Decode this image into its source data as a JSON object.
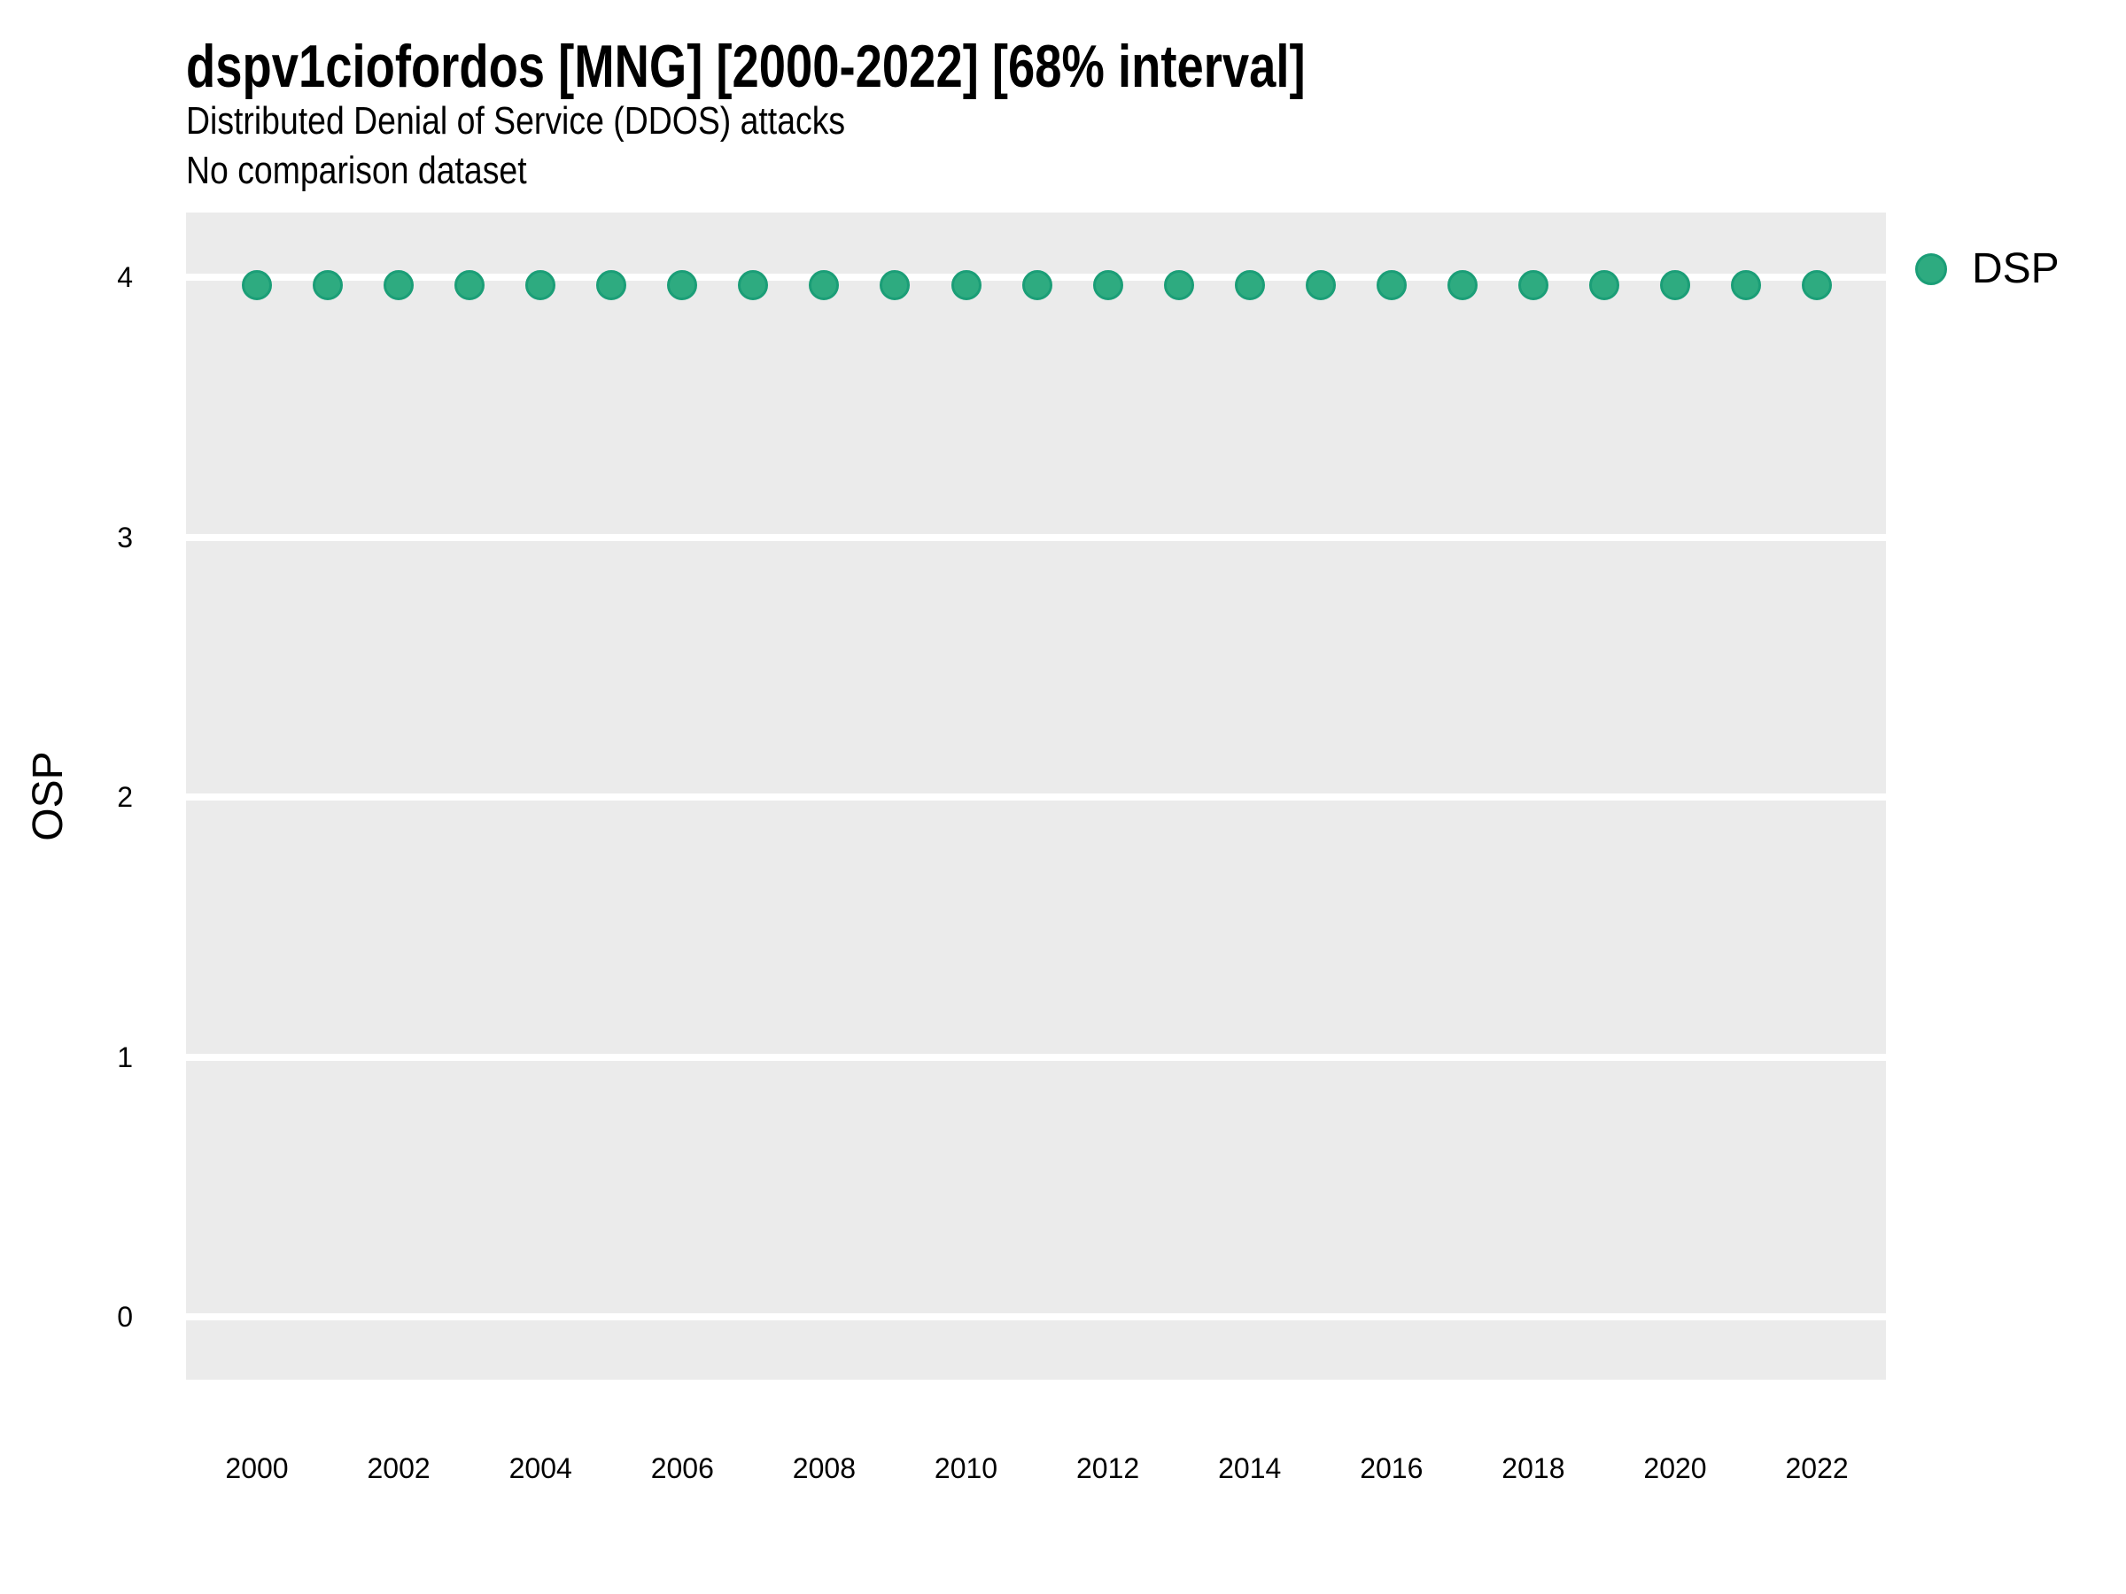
{
  "header": {
    "title": "dspv1ciofordos [MNG] [2000-2022] [68% interval]",
    "subtitle": "Distributed Denial of Service (DDOS) attacks",
    "note": "No comparison dataset"
  },
  "y_axis": {
    "label": "OSP",
    "tick_labels": [
      "4",
      "3",
      "2",
      "1",
      "0"
    ]
  },
  "x_axis": {
    "tick_labels": [
      "2000",
      "2002",
      "2004",
      "2006",
      "2008",
      "2010",
      "2012",
      "2014",
      "2016",
      "2018",
      "2020",
      "2022"
    ]
  },
  "legend": {
    "position": "right-top",
    "items": [
      {
        "label": "DSP",
        "color": "#2EAB80",
        "stroke": "#1B9E77"
      }
    ]
  },
  "colors": {
    "panel_background": "#EBEBEB",
    "gridline": "#FFFFFF",
    "point_fill": "#2EAB80",
    "point_stroke": "#1B9E77",
    "text": "#000000"
  },
  "chart_data": {
    "type": "scatter",
    "title": "dspv1ciofordos [MNG] [2000-2022] [68% interval]",
    "subtitle": "Distributed Denial of Service (DDOS) attacks",
    "note": "No comparison dataset",
    "xlabel": "",
    "ylabel": "OSP",
    "series": [
      {
        "name": "DSP",
        "x": [
          2000,
          2001,
          2002,
          2003,
          2004,
          2005,
          2006,
          2007,
          2008,
          2009,
          2010,
          2011,
          2012,
          2013,
          2014,
          2015,
          2016,
          2017,
          2018,
          2019,
          2020,
          2021,
          2022
        ],
        "y": [
          3.97,
          3.97,
          3.97,
          3.97,
          3.97,
          3.97,
          3.97,
          3.97,
          3.97,
          3.97,
          3.97,
          3.97,
          3.97,
          3.97,
          3.97,
          3.97,
          3.97,
          3.97,
          3.97,
          3.97,
          3.97,
          3.97,
          3.97
        ]
      }
    ],
    "xlim": [
      1999,
      2023
    ],
    "ylim": [
      -0.25,
      4.25
    ],
    "yticks": [
      0,
      1,
      2,
      3,
      4
    ],
    "xticks": [
      2000,
      2002,
      2004,
      2006,
      2008,
      2010,
      2012,
      2014,
      2016,
      2018,
      2020,
      2022
    ],
    "grid": "horizontal-major-only",
    "legend_position": "right-top"
  }
}
